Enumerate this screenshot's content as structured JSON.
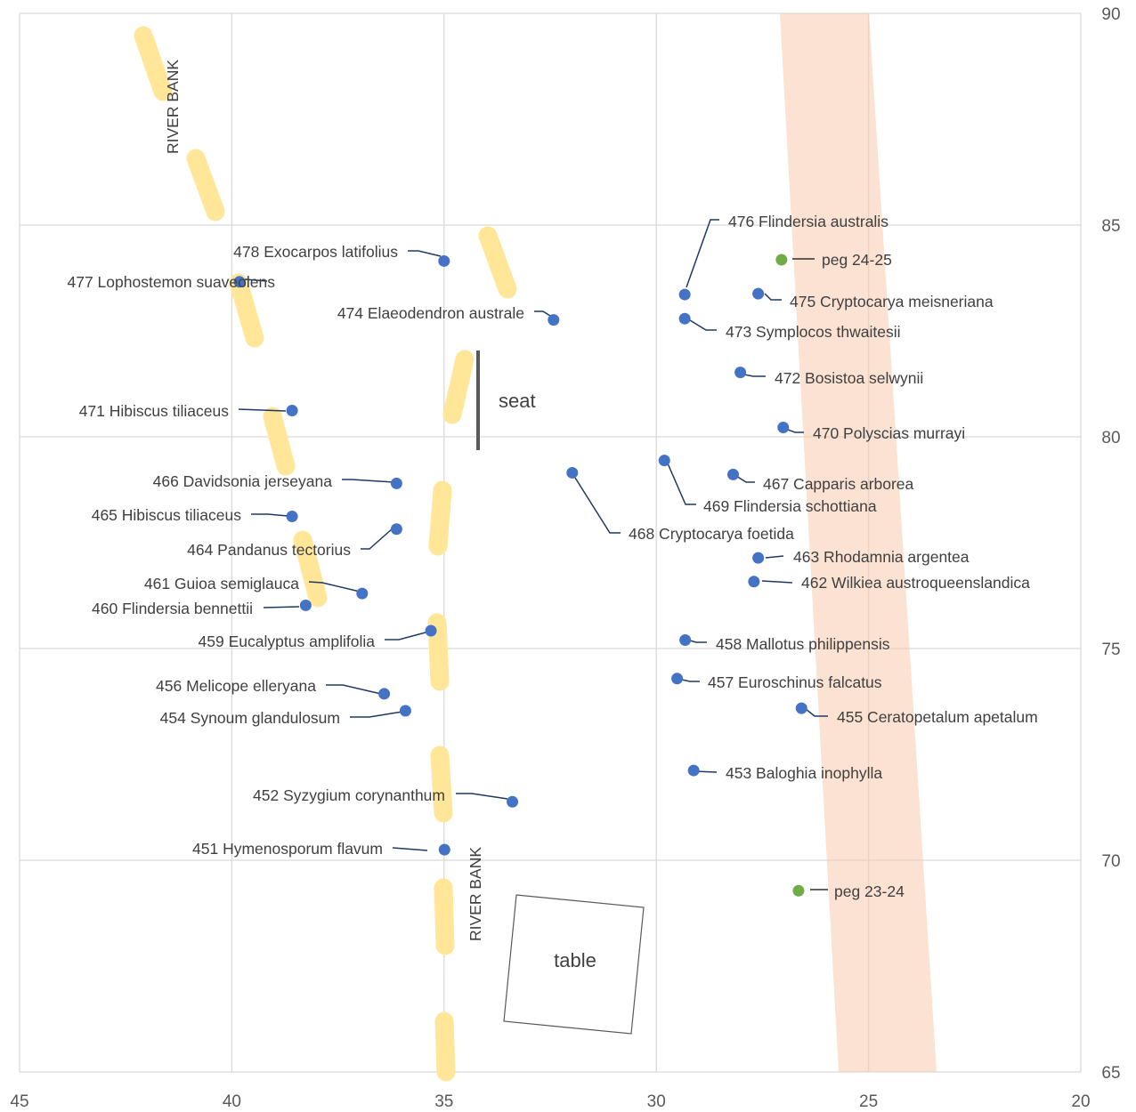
{
  "chart_data": {
    "type": "scatter",
    "title": "",
    "xlabel": "",
    "ylabel": "",
    "xlim": [
      45,
      20
    ],
    "ylim": [
      65,
      90
    ],
    "x_ticks": [
      45,
      40,
      35,
      30,
      25,
      20
    ],
    "y_ticks": [
      65,
      70,
      75,
      80,
      85,
      90
    ],
    "grid": true,
    "y_axis_side": "right",
    "colors": {
      "tree": "#4472C4",
      "peg": "#70AD47",
      "leader": "#1F3864",
      "bank": "#FFE699",
      "road": "#F8CBAD",
      "seat": "#595959",
      "table": "#595959"
    },
    "series": [
      {
        "points": [
          {
            "x": 34.99,
            "y": 70.25,
            "label": "451 Hymenosporum flavum"
          },
          {
            "x": 33.39,
            "y": 71.38,
            "label": "452 Syzygium corynanthum"
          },
          {
            "x": 29.12,
            "y": 72.12,
            "label": "453 Baloghia inophylla"
          },
          {
            "x": 35.91,
            "y": 73.53,
            "label": "454 Synoum glandulosum"
          },
          {
            "x": 26.58,
            "y": 73.59,
            "label": "455 Ceratopetalum apetalum"
          },
          {
            "x": 36.41,
            "y": 73.93,
            "label": "456 Melicope elleryana"
          },
          {
            "x": 29.51,
            "y": 74.29,
            "label": "457 Euroschinus falcatus"
          },
          {
            "x": 29.32,
            "y": 75.2,
            "label": "458 Mallotus philippensis"
          },
          {
            "x": 35.31,
            "y": 75.42,
            "label": "459 Eucalyptus amplifolia"
          },
          {
            "x": 38.26,
            "y": 76.02,
            "label": "460 Flindersia bennettii"
          },
          {
            "x": 36.93,
            "y": 76.3,
            "label": "461 Guioa semiglauca"
          },
          {
            "x": 27.7,
            "y": 76.58,
            "label": "462 Wilkiea austroqueenslandica"
          },
          {
            "x": 27.6,
            "y": 77.14,
            "label": "463 Rhodamnia argentea"
          },
          {
            "x": 36.12,
            "y": 77.82,
            "label": "464 Pandanus tectorius"
          },
          {
            "x": 38.58,
            "y": 78.12,
            "label": "465 Hibiscus tiliaceus"
          },
          {
            "x": 36.12,
            "y": 78.9,
            "label": "466 Davidsonia jerseyana"
          },
          {
            "x": 28.19,
            "y": 79.11,
            "label": "467 Capparis arborea"
          },
          {
            "x": 31.98,
            "y": 79.15,
            "label": "468 Cryptocarya foetida"
          },
          {
            "x": 29.81,
            "y": 79.44,
            "label": "469 Flindersia schottiana"
          },
          {
            "x": 27.01,
            "y": 80.22,
            "label": "470 Polyscias murrayi"
          },
          {
            "x": 38.58,
            "y": 80.62,
            "label": "471 Hibiscus tiliaceus"
          },
          {
            "x": 28.02,
            "y": 81.52,
            "label": "472 Bosistoa selwynii"
          },
          {
            "x": 29.33,
            "y": 82.79,
            "label": "473 Symplocos thwaitesii"
          },
          {
            "x": 32.42,
            "y": 82.76,
            "label": "474 Elaeodendron australe"
          },
          {
            "x": 27.6,
            "y": 83.38,
            "label": "475 Cryptocarya meisneriana"
          },
          {
            "x": 29.33,
            "y": 83.36,
            "label": "476 Flindersia australis"
          },
          {
            "x": 39.82,
            "y": 83.66,
            "label": "477 Lophostemon suaveolens"
          },
          {
            "x": 35.0,
            "y": 84.15,
            "label": "478 Exocarpos latifolius"
          }
        ]
      },
      {
        "points": [
          {
            "x": 27.05,
            "y": 84.18,
            "label": "peg 24-25"
          },
          {
            "x": 26.65,
            "y": 69.28,
            "label": "peg 23-24"
          }
        ]
      }
    ],
    "annotations": [
      "RIVER  BANK",
      "RIVER  BANK",
      "seat",
      "table"
    ]
  }
}
